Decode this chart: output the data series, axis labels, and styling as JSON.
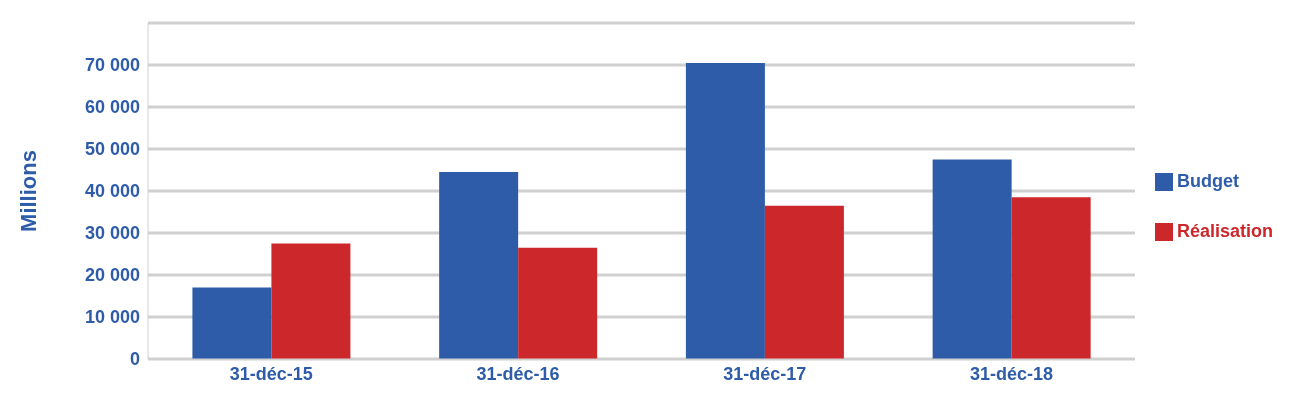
{
  "chart_data": {
    "type": "bar",
    "ylabel": "Millions",
    "categories": [
      "31-déc-15",
      "31-déc-16",
      "31-déc-17",
      "31-déc-18"
    ],
    "series": [
      {
        "name": "Budget",
        "color": "#2e5ca8",
        "values": [
          17000,
          44500,
          70500,
          47500
        ]
      },
      {
        "name": "Réalisation",
        "color": "#cc282c",
        "values": [
          27500,
          26500,
          36500,
          38500
        ]
      }
    ],
    "ylim": [
      0,
      80000
    ],
    "yticks": [
      {
        "value": 0,
        "label": "0"
      },
      {
        "value": 10000,
        "label": "10 000"
      },
      {
        "value": 20000,
        "label": "20 000"
      },
      {
        "value": 30000,
        "label": "30 000"
      },
      {
        "value": 40000,
        "label": "40 000"
      },
      {
        "value": 50000,
        "label": "50 000"
      },
      {
        "value": 60000,
        "label": "60 000"
      },
      {
        "value": 70000,
        "label": "70 000"
      },
      {
        "value": 80000,
        "label": null
      }
    ],
    "grid": "y",
    "legend": "right"
  }
}
